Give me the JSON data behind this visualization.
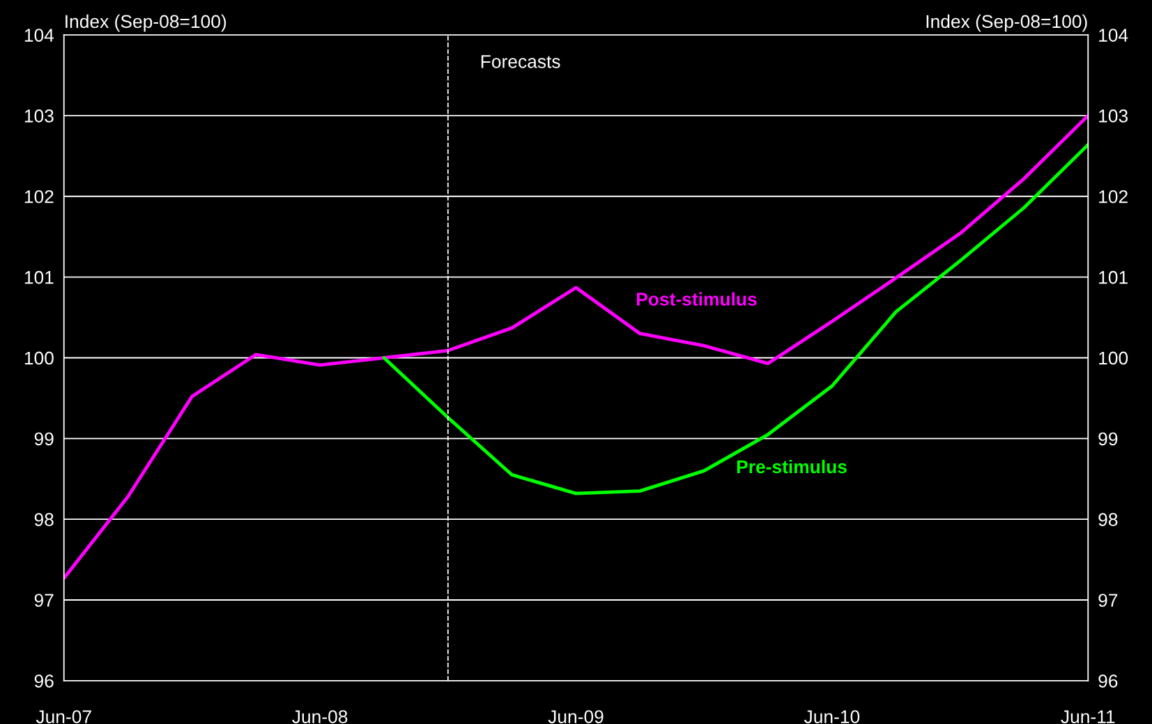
{
  "chart_data": {
    "type": "line",
    "ylabel": "Index (Sep-08=100)",
    "y2label": "Index (Sep-08=100)",
    "x": [
      "2007-06",
      "2007-09",
      "2007-12",
      "2008-03",
      "2008-06",
      "2008-09",
      "2008-12",
      "2009-03",
      "2009-06",
      "2009-09",
      "2009-12",
      "2010-03",
      "2010-06",
      "2010-09",
      "2010-12",
      "2011-03",
      "2011-06"
    ],
    "series": [
      {
        "name": "Post-stimulus",
        "color": "#ff00ff",
        "values": [
          97.27,
          98.28,
          99.52,
          100.04,
          99.91,
          100.0,
          100.09,
          100.37,
          100.87,
          100.3,
          100.15,
          99.93,
          100.45,
          100.99,
          101.54,
          102.22,
          103.0
        ]
      },
      {
        "name": "Pre-stimulus",
        "color": "#00ff00",
        "values": [
          null,
          null,
          null,
          null,
          null,
          100.0,
          99.26,
          98.55,
          98.32,
          98.35,
          98.6,
          99.05,
          99.65,
          100.57,
          101.2,
          101.86,
          102.64
        ]
      }
    ],
    "xlim": [
      "2007-06",
      "2011-06"
    ],
    "xticks": [
      {
        "value": "2007-06",
        "label": "Jun-07"
      },
      {
        "value": "2008-06",
        "label": "Jun-08"
      },
      {
        "value": "2009-06",
        "label": "Jun-09"
      },
      {
        "value": "2010-06",
        "label": "Jun-10"
      },
      {
        "value": "2011-06",
        "label": "Jun-11"
      }
    ],
    "ylim": [
      96,
      104
    ],
    "yticks": [
      96,
      97,
      98,
      99,
      100,
      101,
      102,
      103,
      104
    ],
    "y2lim": [
      96,
      104
    ],
    "y2ticks": [
      96,
      97,
      98,
      99,
      100,
      101,
      102,
      103,
      104
    ],
    "grid": "y",
    "legend": false,
    "line_style": "solid",
    "marker": "none",
    "ref_lines": [
      {
        "axis": "x",
        "value": "2008-12",
        "label": "Forecasts",
        "color": "#ffffff",
        "line_style": "dashed"
      }
    ]
  }
}
